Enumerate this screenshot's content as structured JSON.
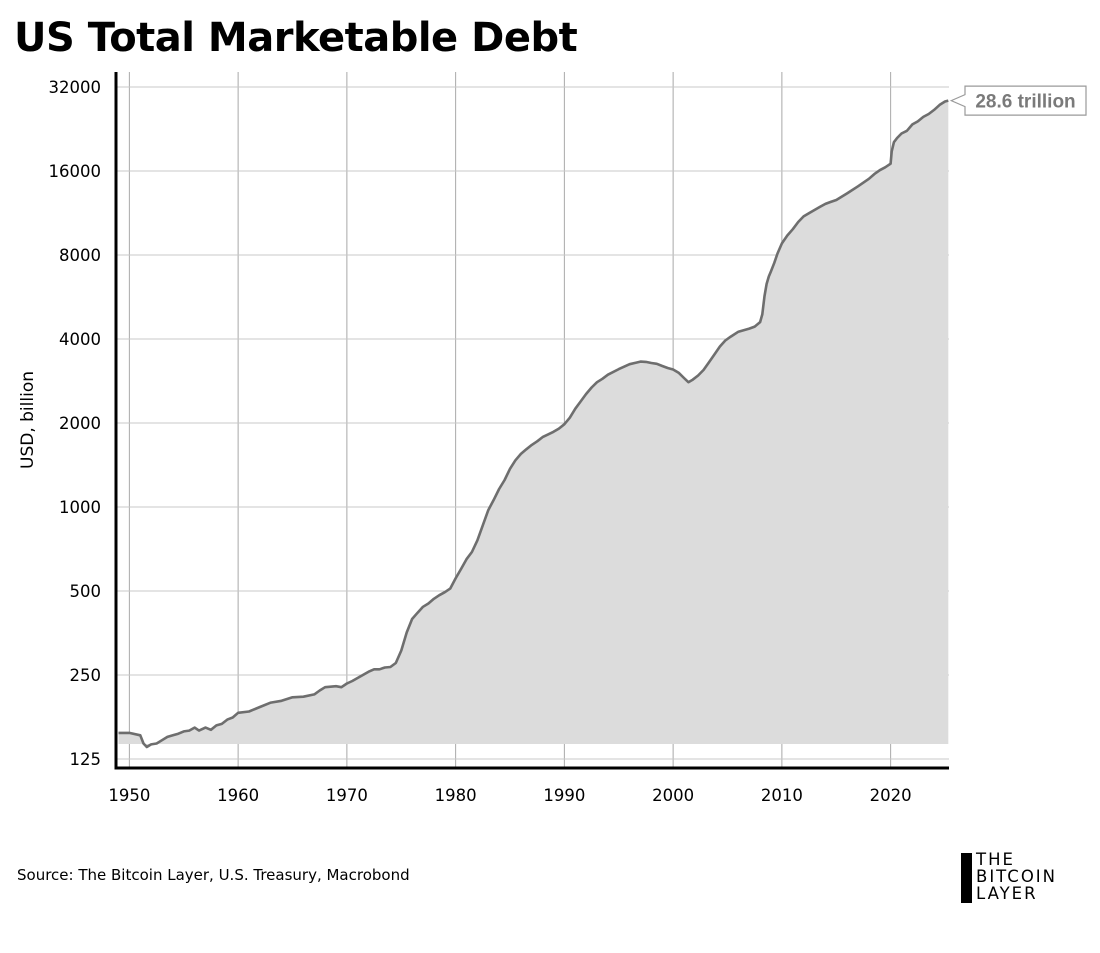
{
  "title": "US Total Marketable Debt",
  "source": "Source: The Bitcoin Layer, U.S. Treasury, Macrobond",
  "logo": {
    "lines": [
      "THE",
      "BITCOIN",
      "LAYER"
    ]
  },
  "colors": {
    "line": "#6e6e6e",
    "fill": "#dcdcdc",
    "grid": "#c8c8c8",
    "vgrid": "#a9a9a9",
    "label_text": "#7a7a7a"
  },
  "chart_data": {
    "type": "area",
    "title": "US Total Marketable Debt",
    "ylabel": "USD, billion",
    "xlabel": "",
    "yscale": "log2",
    "xlim": [
      1949,
      2025.6
    ],
    "ylim": [
      125,
      32000
    ],
    "x_ticks": [
      1950,
      1960,
      1970,
      1980,
      1990,
      2000,
      2010,
      2020
    ],
    "y_ticks": [
      125,
      250,
      500,
      1000,
      2000,
      4000,
      8000,
      16000,
      32000
    ],
    "grid": {
      "x": true,
      "y": true
    },
    "annotation": {
      "text": "28.6 trillion",
      "x": 2025.3,
      "y": 28600
    },
    "series": [
      {
        "x": [
          1949.0,
          1950.0,
          1951.0,
          1951.3,
          1951.6,
          1952.0,
          1952.5,
          1953.0,
          1953.5,
          1954.0,
          1954.5,
          1955.0,
          1955.5,
          1956.0,
          1956.4,
          1957.0,
          1957.5,
          1958.0,
          1958.5,
          1959.0,
          1959.5,
          1960.0,
          1961.0,
          1962.0,
          1963.0,
          1964.0,
          1965.0,
          1966.0,
          1967.0,
          1967.5,
          1968.0,
          1969.0,
          1969.5,
          1970.0,
          1970.5,
          1971.0,
          1972.0,
          1972.5,
          1973.0,
          1973.5,
          1974.0,
          1974.5,
          1975.0,
          1975.5,
          1976.0,
          1976.5,
          1977.0,
          1977.5,
          1978.0,
          1978.5,
          1979.0,
          1979.5,
          1980.0,
          1980.5,
          1981.0,
          1981.5,
          1982.0,
          1982.5,
          1983.0,
          1983.5,
          1984.0,
          1984.5,
          1985.0,
          1985.5,
          1986.0,
          1986.5,
          1987.0,
          1987.5,
          1988.0,
          1988.5,
          1989.0,
          1989.5,
          1990.0,
          1990.5,
          1991.0,
          1991.5,
          1992.0,
          1992.5,
          1993.0,
          1993.5,
          1994.0,
          1995.0,
          1996.0,
          1997.0,
          1997.5,
          1998.0,
          1998.5,
          1999.0,
          1999.5,
          2000.0,
          2000.5,
          2001.0,
          2001.4,
          2001.8,
          2002.3,
          2002.8,
          2003.3,
          2003.8,
          2004.3,
          2004.8,
          2005.3,
          2006.0,
          2007.0,
          2007.5,
          2008.0,
          2008.2,
          2008.4,
          2008.6,
          2008.8,
          2009.0,
          2009.3,
          2009.6,
          2010.0,
          2010.5,
          2011.0,
          2011.5,
          2012.0,
          2012.5,
          2013.0,
          2013.5,
          2014.0,
          2014.5,
          2015.0,
          2016.0,
          2017.0,
          2018.0,
          2018.5,
          2019.0,
          2019.5,
          2020.0,
          2020.1,
          2020.3,
          2020.6,
          2021.0,
          2021.5,
          2022.0,
          2022.5,
          2023.0,
          2023.5,
          2024.0,
          2024.5,
          2025.0,
          2025.3
        ],
        "values": [
          155,
          155,
          152,
          142,
          138,
          141,
          142,
          146,
          150,
          152,
          154,
          157,
          158,
          162,
          158,
          162,
          159,
          165,
          167,
          173,
          176,
          183,
          185,
          192,
          199,
          202,
          208,
          209,
          213,
          220,
          226,
          228,
          226,
          233,
          238,
          244,
          257,
          262,
          262,
          266,
          267,
          276,
          306,
          355,
          397,
          418,
          439,
          451,
          469,
          483,
          495,
          510,
          555,
          600,
          650,
          690,
          760,
          860,
          975,
          1060,
          1160,
          1250,
          1370,
          1470,
          1550,
          1610,
          1670,
          1720,
          1780,
          1820,
          1860,
          1910,
          1980,
          2090,
          2250,
          2390,
          2540,
          2680,
          2800,
          2880,
          2980,
          3120,
          3250,
          3320,
          3310,
          3280,
          3260,
          3200,
          3150,
          3110,
          3030,
          2900,
          2800,
          2860,
          2960,
          3100,
          3300,
          3520,
          3760,
          3950,
          4080,
          4250,
          4360,
          4430,
          4600,
          4900,
          5700,
          6300,
          6700,
          7000,
          7500,
          8100,
          8800,
          9400,
          9900,
          10500,
          11000,
          11300,
          11600,
          11900,
          12200,
          12400,
          12600,
          13300,
          14100,
          15000,
          15600,
          16100,
          16500,
          17000,
          18800,
          20300,
          21000,
          21800,
          22300,
          23500,
          24100,
          25000,
          25600,
          26500,
          27600,
          28400,
          28600
        ]
      }
    ]
  }
}
